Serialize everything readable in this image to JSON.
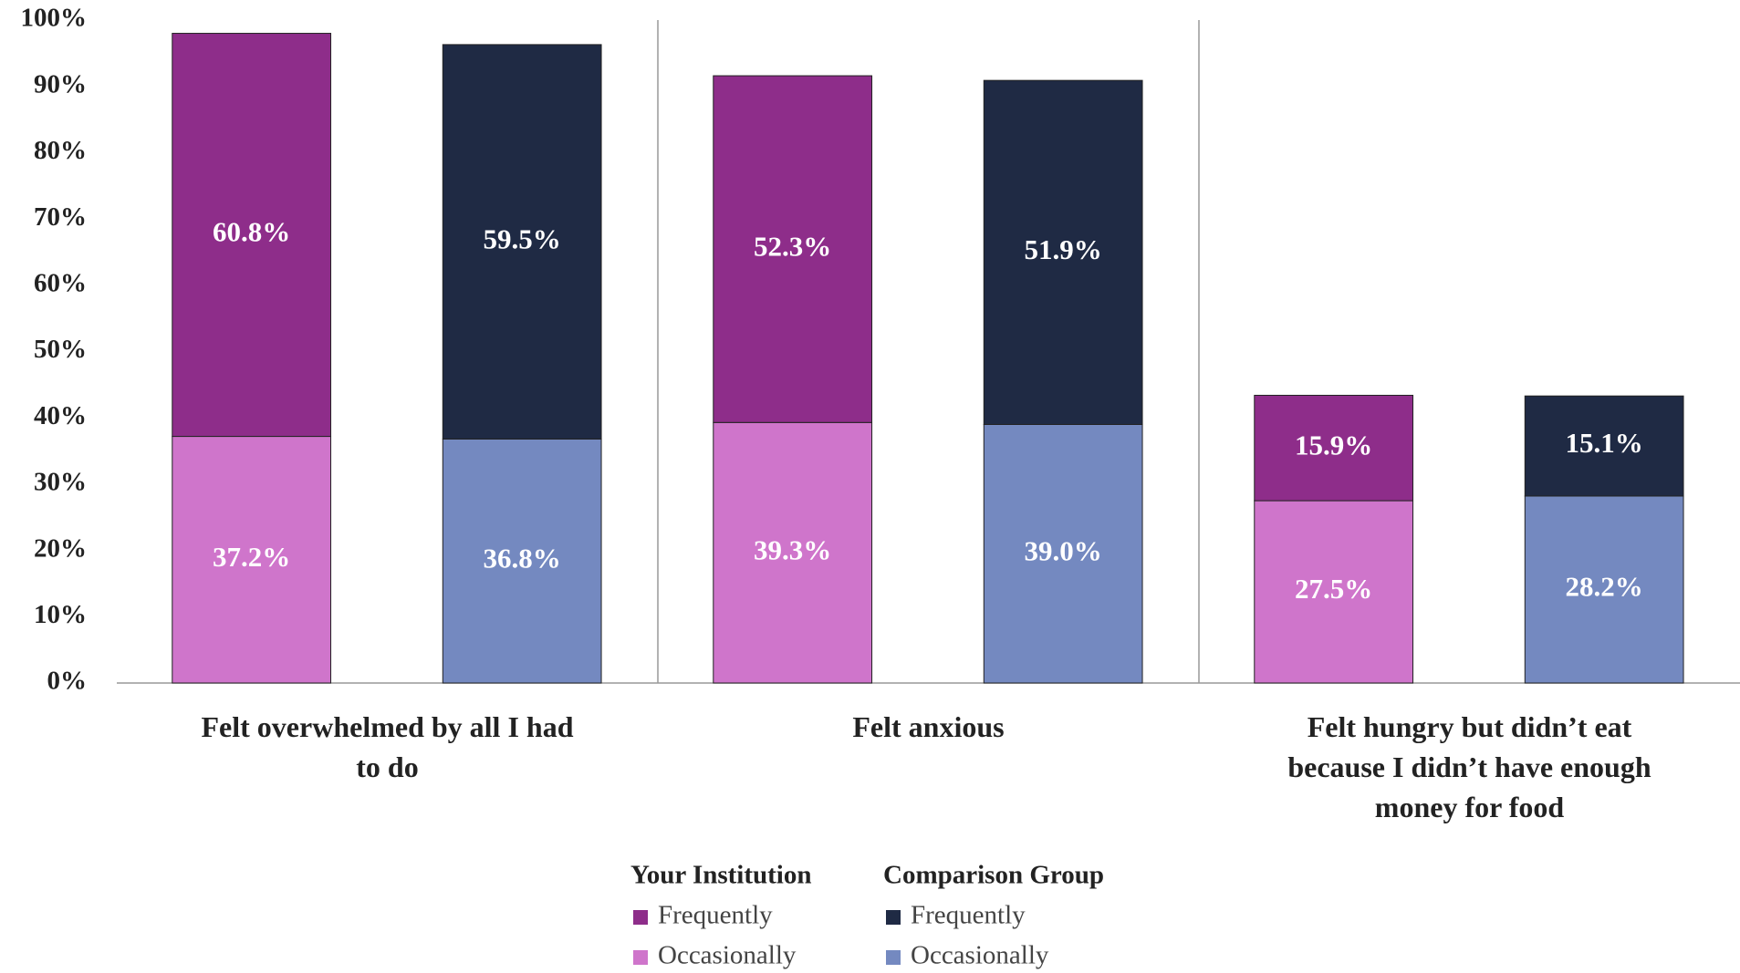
{
  "chart_data": {
    "type": "stacked_bar",
    "categories": [
      "Felt overwhelmed by all I had to do",
      "Felt anxious",
      "Felt hungry but didn’t eat because I didn’t have enough money for food"
    ],
    "series": [
      {
        "name": "Occasionally",
        "group": "Your Institution",
        "color": "#cf75cb",
        "values": [
          37.2,
          39.3,
          27.5
        ],
        "value_labels": [
          "37.2%",
          "39.3%",
          "27.5%"
        ]
      },
      {
        "name": "Frequently",
        "group": "Your Institution",
        "color": "#8e2d8a",
        "values": [
          60.8,
          52.3,
          15.9
        ],
        "value_labels": [
          "60.8%",
          "52.3%",
          "15.9%"
        ]
      },
      {
        "name": "Occasionally",
        "group": "Comparison Group",
        "color": "#7489c0",
        "values": [
          36.8,
          39.0,
          28.2
        ],
        "value_labels": [
          "36.8%",
          "39.0%",
          "28.2%"
        ]
      },
      {
        "name": "Frequently",
        "group": "Comparison Group",
        "color": "#1f2a44",
        "values": [
          59.5,
          51.9,
          15.1
        ],
        "value_labels": [
          "59.5%",
          "51.9%",
          "15.1%"
        ]
      }
    ],
    "ylim": [
      0,
      100
    ],
    "yticks": [
      {
        "value": 0,
        "label": "0%"
      },
      {
        "value": 10,
        "label": "10%"
      },
      {
        "value": 20,
        "label": "20%"
      },
      {
        "value": 30,
        "label": "30%"
      },
      {
        "value": 40,
        "label": "40%"
      },
      {
        "value": 50,
        "label": "50%"
      },
      {
        "value": 60,
        "label": "60%"
      },
      {
        "value": 70,
        "label": "70%"
      },
      {
        "value": 80,
        "label": "80%"
      },
      {
        "value": 90,
        "label": "90%"
      },
      {
        "value": 100,
        "label": "100%"
      }
    ]
  }
}
